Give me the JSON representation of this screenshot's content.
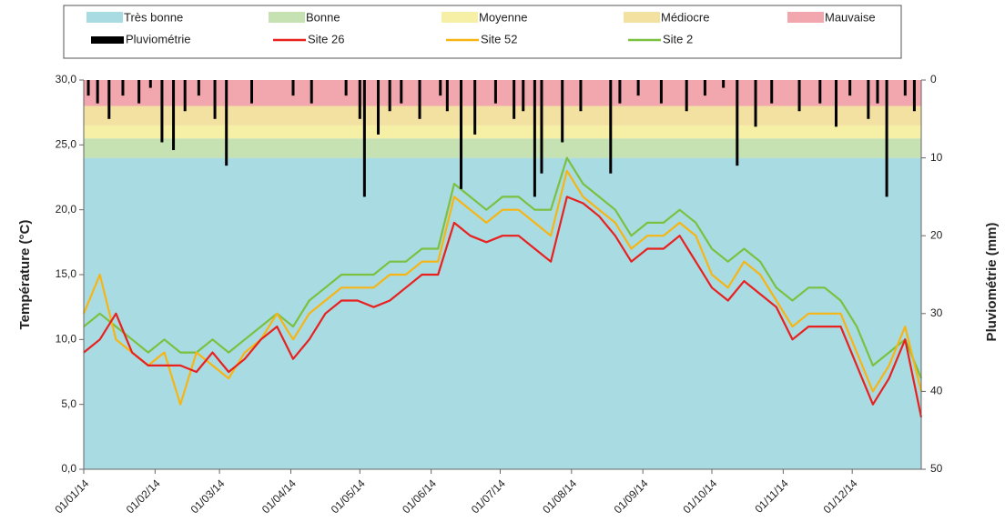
{
  "chart_data": {
    "type": "line",
    "bands": [
      {
        "name": "Très bonne",
        "color": "#a9dbe3",
        "from": 0,
        "to": 24
      },
      {
        "name": "Bonne",
        "color": "#c6e2b3",
        "from": 24,
        "to": 25.5
      },
      {
        "name": "Moyenne",
        "color": "#f6f0a6",
        "from": 25.5,
        "to": 26.5
      },
      {
        "name": "Médiocre",
        "color": "#f3e1a2",
        "from": 26.5,
        "to": 28
      },
      {
        "name": "Mauvaise",
        "color": "#f2a6ad",
        "from": 28,
        "to": 30
      }
    ],
    "x": [
      "01/01/14",
      "08/01/14",
      "15/01/14",
      "22/01/14",
      "29/01/14",
      "05/02/14",
      "12/02/14",
      "19/02/14",
      "26/02/14",
      "05/03/14",
      "12/03/14",
      "19/03/14",
      "26/03/14",
      "02/04/14",
      "09/04/14",
      "16/04/14",
      "23/04/14",
      "30/04/14",
      "07/05/14",
      "14/05/14",
      "21/05/14",
      "28/05/14",
      "04/06/14",
      "11/06/14",
      "18/06/14",
      "25/06/14",
      "02/07/14",
      "09/07/14",
      "16/07/14",
      "23/07/14",
      "30/07/14",
      "06/08/14",
      "13/08/14",
      "20/08/14",
      "27/08/14",
      "03/09/14",
      "10/09/14",
      "17/09/14",
      "24/09/14",
      "01/10/14",
      "08/10/14",
      "15/10/14",
      "22/10/14",
      "29/10/14",
      "05/11/14",
      "12/11/14",
      "19/11/14",
      "26/11/14",
      "03/12/14",
      "10/12/14",
      "17/12/14",
      "24/12/14",
      "31/12/14"
    ],
    "series": [
      {
        "name": "Pluviométrie",
        "color": "#000000",
        "axis": "y2",
        "type": "bar",
        "x": [
          "03/01/14",
          "07/01/14",
          "12/01/14",
          "18/01/14",
          "25/01/14",
          "30/01/14",
          "04/02/14",
          "09/02/14",
          "14/02/14",
          "20/02/14",
          "27/02/14",
          "04/03/14",
          "15/03/14",
          "02/04/14",
          "10/04/14",
          "25/04/14",
          "01/05/14",
          "03/05/14",
          "09/05/14",
          "14/05/14",
          "19/05/14",
          "27/05/14",
          "05/06/14",
          "08/06/14",
          "14/06/14",
          "20/06/14",
          "29/06/14",
          "07/07/14",
          "11/07/14",
          "16/07/14",
          "19/07/14",
          "28/07/14",
          "05/08/14",
          "18/08/14",
          "22/08/14",
          "30/08/14",
          "09/09/14",
          "20/09/14",
          "28/09/14",
          "06/10/14",
          "12/10/14",
          "20/10/14",
          "27/10/14",
          "08/11/14",
          "17/11/14",
          "24/11/14",
          "30/11/14",
          "08/12/14",
          "12/12/14",
          "16/12/14",
          "24/12/14",
          "28/12/14"
        ],
        "values": [
          2,
          3,
          5,
          2,
          3,
          1,
          8,
          9,
          4,
          2,
          5,
          11,
          3,
          2,
          3,
          2,
          5,
          15,
          7,
          4,
          3,
          5,
          2,
          4,
          14,
          7,
          3,
          5,
          4,
          15,
          12,
          8,
          4,
          12,
          3,
          2,
          3,
          4,
          2,
          1,
          11,
          6,
          3,
          4,
          3,
          6,
          2,
          5,
          3,
          15,
          2,
          4
        ]
      },
      {
        "name": "Site 26",
        "color": "#e8211f",
        "values": [
          9,
          10,
          12,
          9,
          8,
          8,
          8,
          7.5,
          9,
          7.5,
          8.5,
          10,
          11,
          8.5,
          10,
          12,
          13,
          13,
          12.5,
          13,
          14,
          15,
          15,
          19,
          18,
          17.5,
          18,
          18,
          17,
          16,
          21,
          20.5,
          19.5,
          18,
          16,
          17,
          17,
          18,
          16,
          14,
          13,
          14.5,
          13.5,
          12.5,
          10,
          11,
          11,
          11,
          8,
          5,
          7,
          10,
          4
        ]
      },
      {
        "name": "Site 52",
        "color": "#f7b514",
        "values": [
          12,
          15,
          10,
          9,
          8,
          9,
          5,
          9,
          8,
          7,
          9,
          10,
          12,
          10,
          12,
          13,
          14,
          14,
          14,
          15,
          15,
          16,
          16,
          21,
          20,
          19,
          20,
          20,
          19,
          18,
          23,
          21,
          20,
          19,
          17,
          18,
          18,
          19,
          18,
          15,
          14,
          16,
          15,
          13,
          11,
          12,
          12,
          12,
          9,
          6,
          8,
          11,
          6
        ]
      },
      {
        "name": "Site 2",
        "color": "#7cc040",
        "values": [
          11,
          12,
          11,
          10,
          9,
          10,
          9,
          9,
          10,
          9,
          10,
          11,
          12,
          11,
          13,
          14,
          15,
          15,
          15,
          16,
          16,
          17,
          17,
          22,
          21,
          20,
          21,
          21,
          20,
          20,
          24,
          22,
          21,
          20,
          18,
          19,
          19,
          20,
          19,
          17,
          16,
          17,
          16,
          14,
          13,
          14,
          14,
          13,
          11,
          8,
          9,
          10,
          7
        ]
      }
    ],
    "xlim": [
      "01/01/14",
      "31/12/14"
    ],
    "xticks": [
      "01/01/14",
      "01/02/14",
      "01/03/14",
      "01/04/14",
      "01/05/14",
      "01/06/14",
      "01/07/14",
      "01/08/14",
      "01/09/14",
      "01/10/14",
      "01/11/14",
      "01/12/14"
    ],
    "ylabel": "Température (°C)",
    "y2label": "Pluviométrie (mm)",
    "ylim": [
      0,
      30
    ],
    "yticks": [
      {
        "value": 0,
        "label": "0,0"
      },
      {
        "value": 5,
        "label": "5,0"
      },
      {
        "value": 10,
        "label": "10,0"
      },
      {
        "value": 15,
        "label": "15,0"
      },
      {
        "value": 20,
        "label": "20,0"
      },
      {
        "value": 25,
        "label": "25,0"
      },
      {
        "value": 30,
        "label": "30,0"
      }
    ],
    "y2lim": [
      0,
      50
    ],
    "y2ticks": [
      0,
      10,
      20,
      30,
      40,
      50
    ]
  }
}
